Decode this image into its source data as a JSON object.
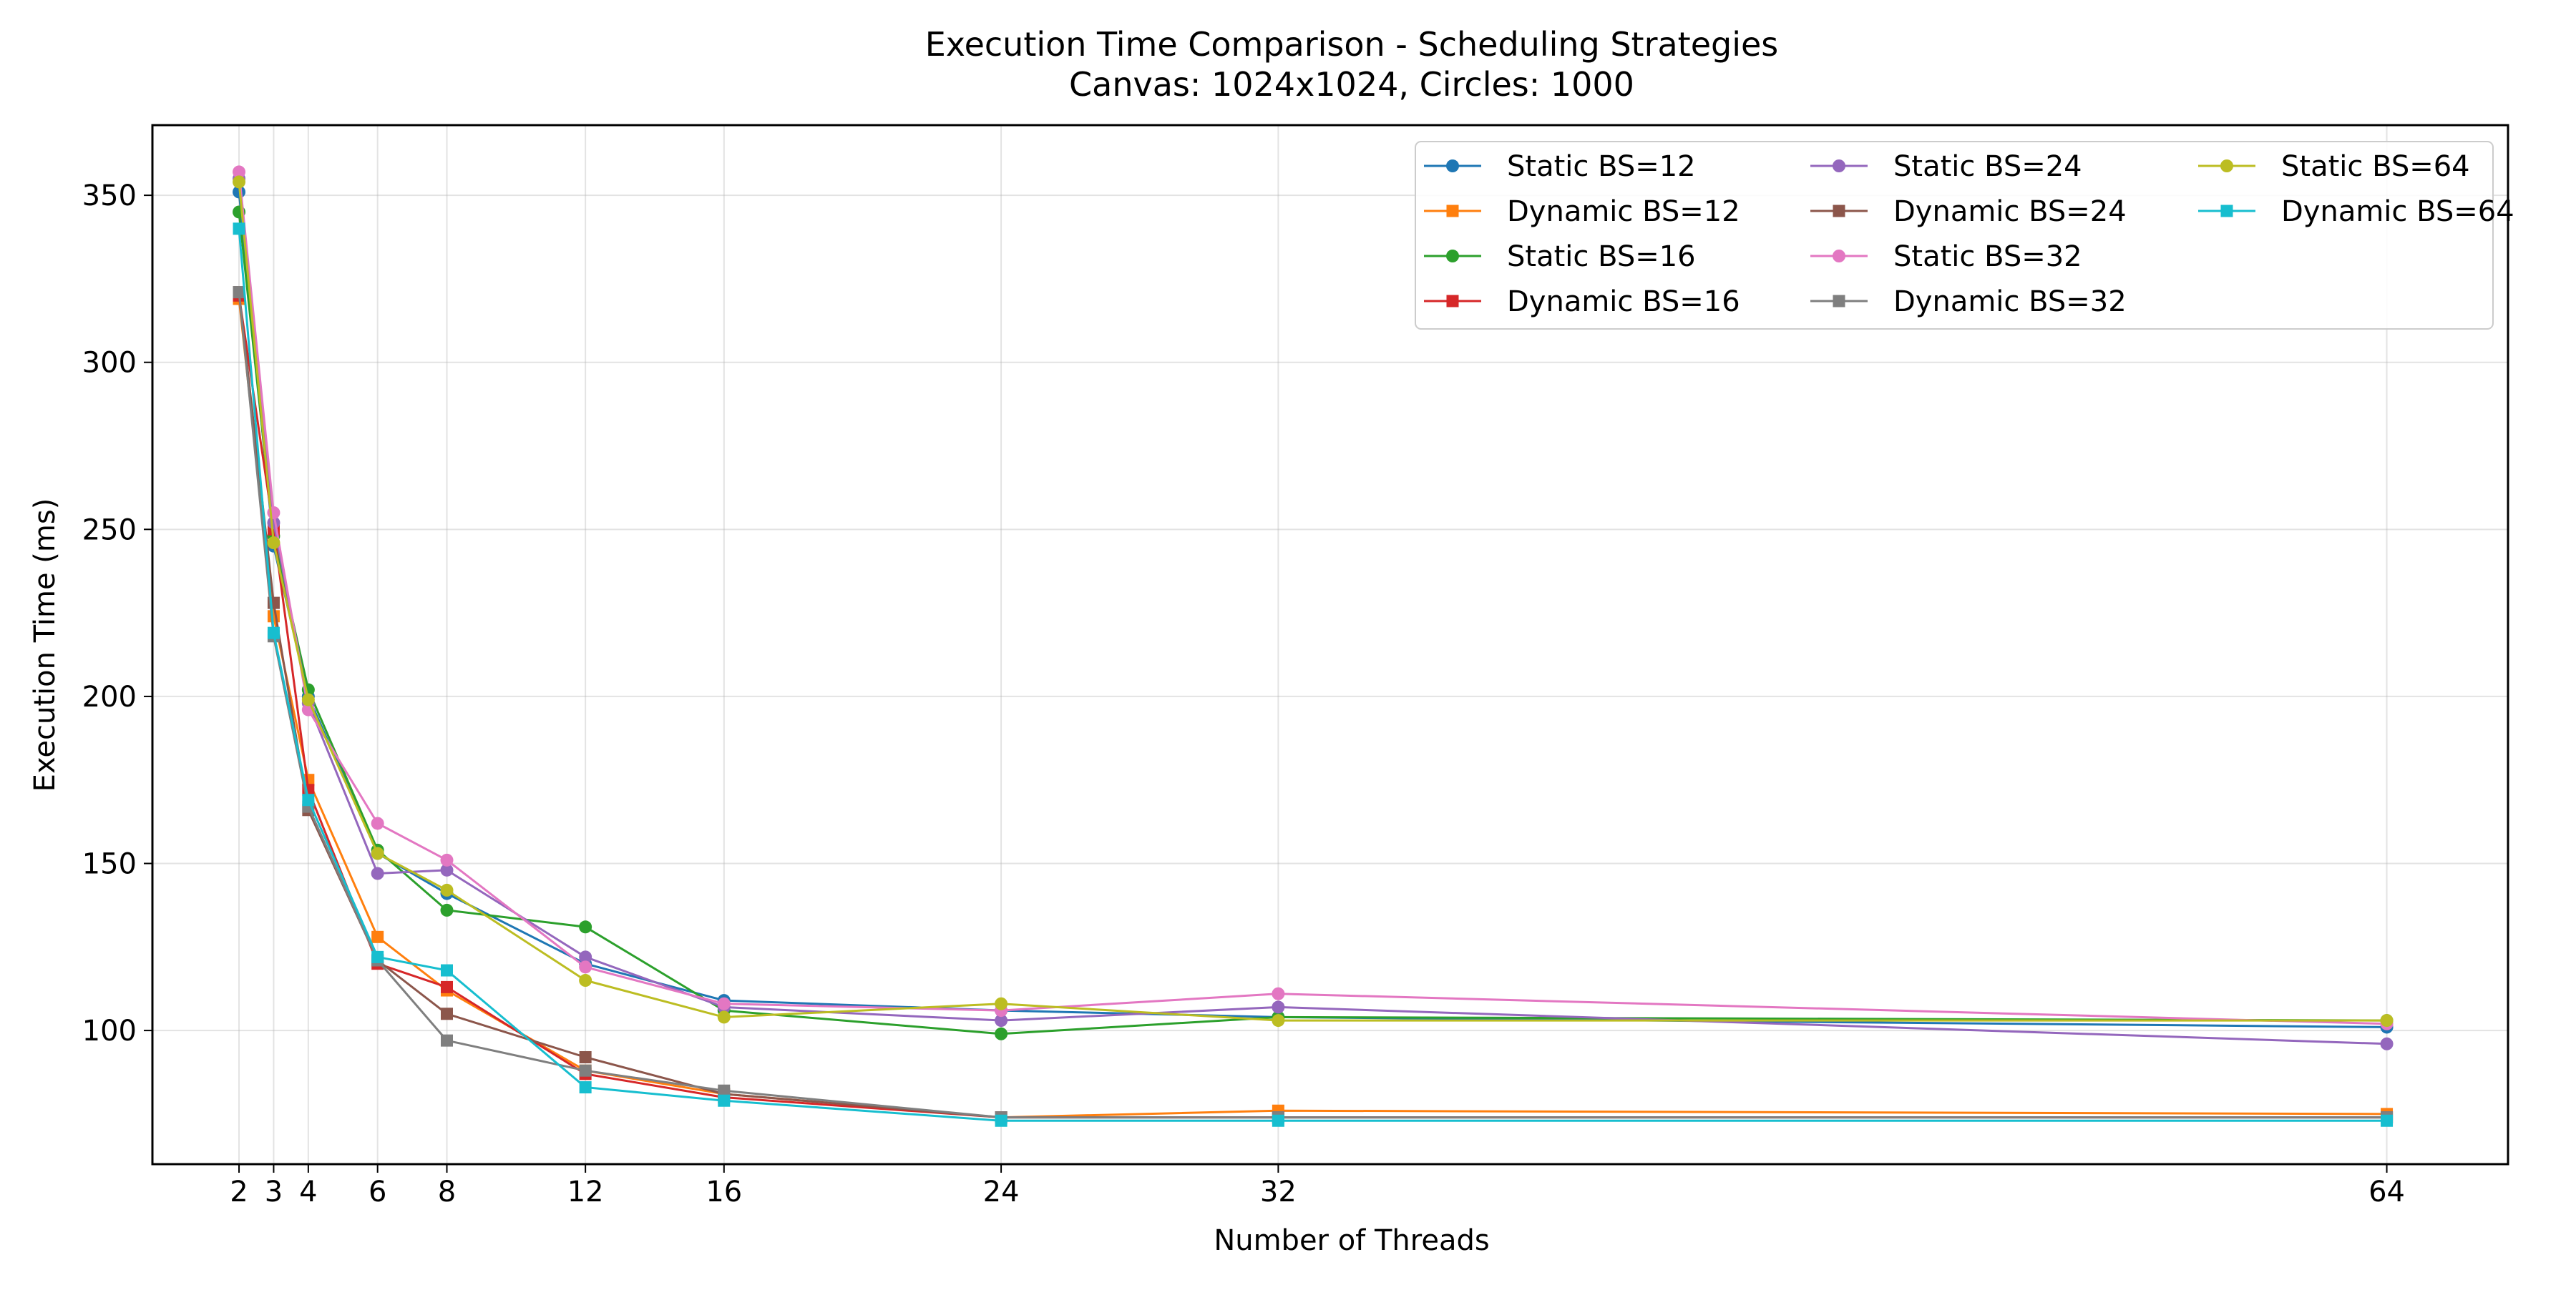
{
  "chart_data": {
    "type": "line",
    "title": "Execution Time Comparison - Scheduling Strategies",
    "subtitle": "Canvas: 1024x1024, Circles: 1000",
    "xlabel": "Number of Threads",
    "ylabel": "Execution Time (ms)",
    "x": [
      2,
      3,
      4,
      6,
      8,
      12,
      16,
      24,
      32,
      64
    ],
    "x_tick_labels": [
      "2",
      "3",
      "4",
      "6",
      "8",
      "12",
      "16",
      "24",
      "32",
      "64"
    ],
    "xlim": [
      -0.5,
      67.5
    ],
    "ylim": [
      60,
      371
    ],
    "y_ticks": [
      100,
      150,
      200,
      250,
      300,
      350
    ],
    "y_tick_labels": [
      "100",
      "150",
      "200",
      "250",
      "300",
      "350"
    ],
    "grid": true,
    "legend_position": "top-right",
    "legend_columns": 3,
    "series": [
      {
        "name": "Static BS=12",
        "color": "#1f77b4",
        "marker": "circle",
        "values": [
          351,
          245,
          200,
          153,
          141,
          120,
          109,
          106,
          104,
          101
        ]
      },
      {
        "name": "Dynamic BS=12",
        "color": "#ff7f0e",
        "marker": "square",
        "values": [
          319,
          224,
          175,
          128,
          112,
          88,
          81,
          74,
          76,
          75
        ]
      },
      {
        "name": "Static BS=16",
        "color": "#2ca02c",
        "marker": "circle",
        "values": [
          345,
          248,
          202,
          154,
          136,
          131,
          106,
          99,
          104,
          103
        ]
      },
      {
        "name": "Dynamic BS=16",
        "color": "#d62728",
        "marker": "square",
        "values": [
          320,
          250,
          172,
          120,
          113,
          87,
          80,
          74,
          74,
          74
        ]
      },
      {
        "name": "Static BS=24",
        "color": "#9467bd",
        "marker": "circle",
        "values": [
          355,
          252,
          198,
          147,
          148,
          122,
          107,
          103,
          107,
          96
        ]
      },
      {
        "name": "Dynamic BS=24",
        "color": "#8c564b",
        "marker": "square",
        "values": [
          321,
          228,
          166,
          121,
          105,
          92,
          81,
          74,
          74,
          74
        ]
      },
      {
        "name": "Static BS=32",
        "color": "#e377c2",
        "marker": "circle",
        "values": [
          357,
          255,
          196,
          162,
          151,
          119,
          108,
          106,
          111,
          102
        ]
      },
      {
        "name": "Dynamic BS=32",
        "color": "#7f7f7f",
        "marker": "square",
        "values": [
          321,
          218,
          167,
          121,
          97,
          88,
          82,
          74,
          74,
          74
        ]
      },
      {
        "name": "Static BS=64",
        "color": "#bcbd22",
        "marker": "circle",
        "values": [
          354,
          246,
          199,
          153,
          142,
          115,
          104,
          108,
          103,
          103
        ]
      },
      {
        "name": "Dynamic BS=64",
        "color": "#17becf",
        "marker": "square",
        "values": [
          340,
          219,
          169,
          122,
          118,
          83,
          79,
          73,
          73,
          73
        ]
      }
    ]
  }
}
